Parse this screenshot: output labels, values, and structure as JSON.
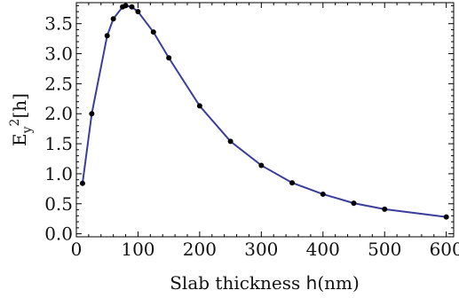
{
  "chart_data": {
    "type": "line",
    "xlabel_prefix": "Slab thickness ",
    "xlabel_var": "h",
    "xlabel_suffix": "(nm)",
    "ylabel_base": "E",
    "ylabel_sub": "y",
    "ylabel_sup": "2",
    "ylabel_tail": "[h]",
    "xlim": [
      0,
      612
    ],
    "ylim": [
      -0.05,
      3.85
    ],
    "x_ticks": [
      0,
      100,
      200,
      300,
      400,
      500,
      600
    ],
    "y_ticks": [
      0.0,
      0.5,
      1.0,
      1.5,
      2.0,
      2.5,
      3.0,
      3.5
    ],
    "x_tick_labels": [
      "0",
      "100",
      "200",
      "300",
      "400",
      "500",
      "600"
    ],
    "y_tick_labels": [
      "0.0",
      "0.5",
      "1.0",
      "1.5",
      "2.0",
      "2.5",
      "3.0",
      "3.5"
    ],
    "grid": false,
    "line_color": "#3a3d9a",
    "marker_color": "#000000",
    "series": [
      {
        "x": [
          10,
          25,
          50,
          60,
          75,
          80,
          90,
          100,
          125,
          150,
          200,
          250,
          300,
          350,
          400,
          450,
          500,
          600
        ],
        "y": [
          0.84,
          2.0,
          3.3,
          3.58,
          3.78,
          3.8,
          3.78,
          3.7,
          3.36,
          2.93,
          2.13,
          1.54,
          1.14,
          0.85,
          0.66,
          0.51,
          0.41,
          0.28
        ]
      }
    ]
  }
}
